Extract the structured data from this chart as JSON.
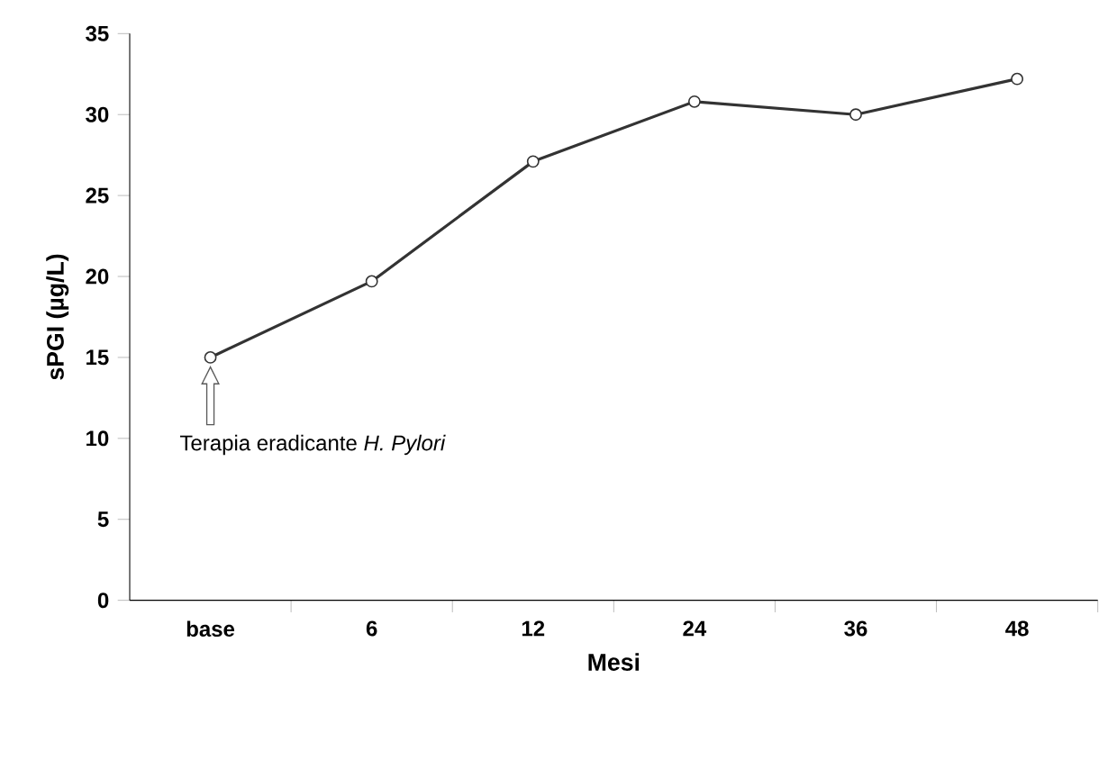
{
  "chart_data": {
    "type": "line",
    "xlabel": "Mesi",
    "ylabel": "sPGI (µg/L)",
    "categories": [
      "base",
      "6",
      "12",
      "24",
      "36",
      "48"
    ],
    "series": [
      {
        "color": "#333333",
        "values": [
          15,
          19.7,
          27.1,
          30.8,
          30,
          32.2
        ]
      }
    ],
    "ylim": [
      0,
      35
    ],
    "yticks": [
      0,
      5,
      10,
      15,
      20,
      25,
      30,
      35
    ],
    "marker": "circle",
    "line_style": "solid",
    "grid": false,
    "annotations": [
      "Terapia eradicante *H. Pylori*"
    ]
  }
}
